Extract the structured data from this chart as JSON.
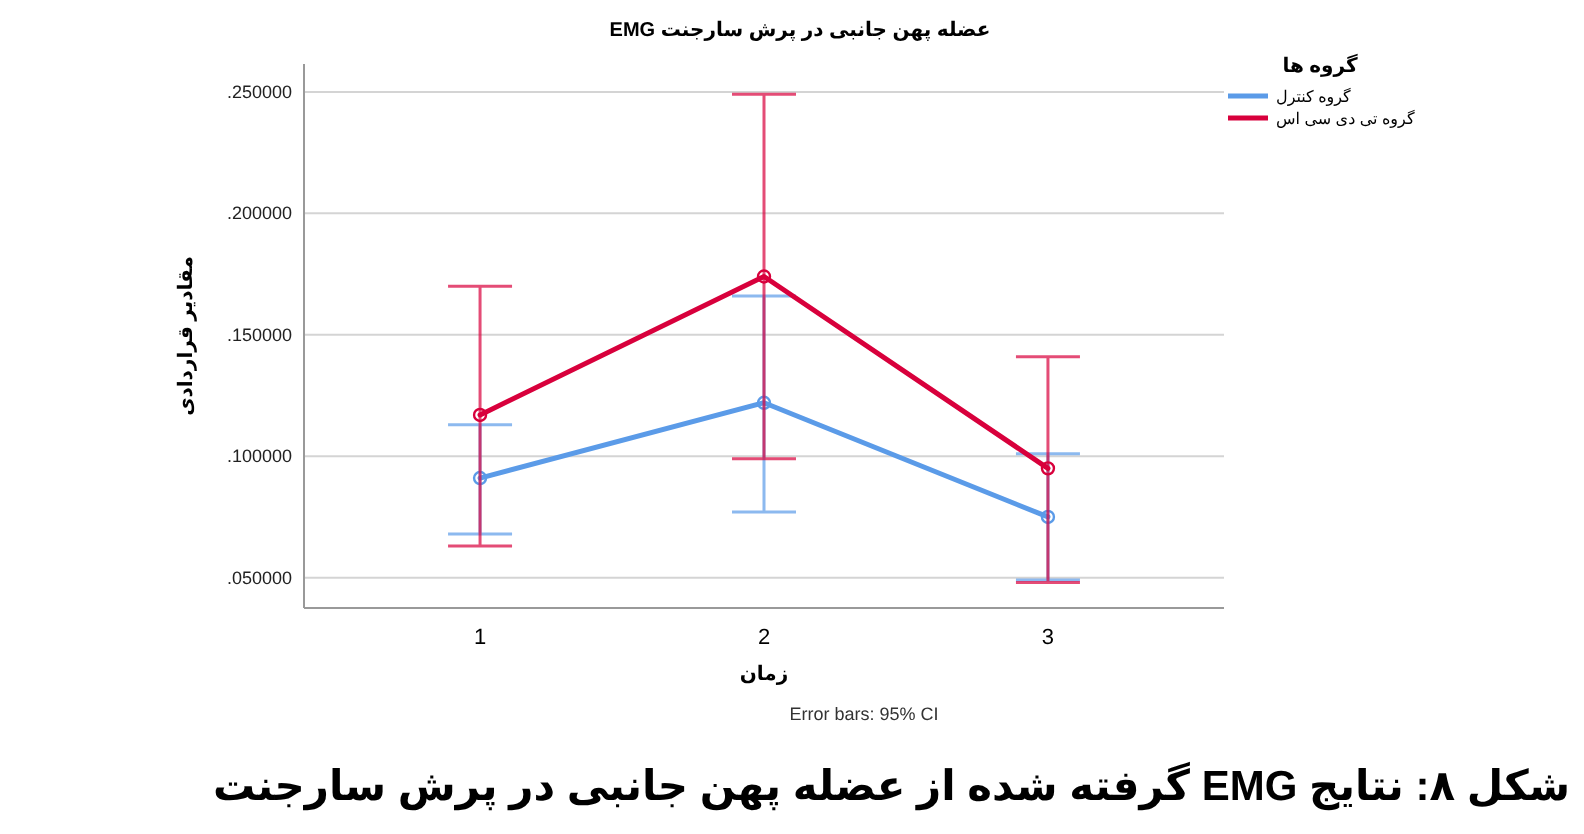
{
  "chart_data": {
    "type": "line",
    "title": "عضله پهن جانبی در پرش سارجنت EMG",
    "xlabel": "زمان",
    "ylabel": "مقادیر قراردادی",
    "legend_title": "گروه ها",
    "categories": [
      "1",
      "2",
      "3"
    ],
    "series": [
      {
        "name": "گروه کنترل",
        "color": "#5b9be8",
        "values": [
          0.091,
          0.122,
          0.075
        ],
        "errors": [
          [
            0.068,
            0.113
          ],
          [
            0.077,
            0.166
          ],
          [
            0.049,
            0.101
          ]
        ]
      },
      {
        "name": "گروه تی دی سی اس",
        "color": "#d8003c",
        "values": [
          0.117,
          0.174,
          0.095
        ],
        "errors": [
          [
            0.063,
            0.17
          ],
          [
            0.099,
            0.249
          ],
          [
            0.048,
            0.141
          ]
        ]
      }
    ],
    "ylim": [
      0.0375,
      0.2615
    ],
    "yticks": [
      {
        "value": 0.05,
        "label": ".050000"
      },
      {
        "value": 0.1,
        "label": ".100000"
      },
      {
        "value": 0.15,
        "label": ".150000"
      },
      {
        "value": 0.2,
        "label": ".200000"
      },
      {
        "value": 0.25,
        "label": ".250000"
      }
    ],
    "grid": "y",
    "legend": "top right",
    "marker": "circle",
    "line_style": "solid",
    "annotations": [
      "Error bars: 95% CI",
      "شکل ۸: نتایج EMG گرفته شده از عضله پهن جانبی در پرش سارجنت"
    ]
  }
}
